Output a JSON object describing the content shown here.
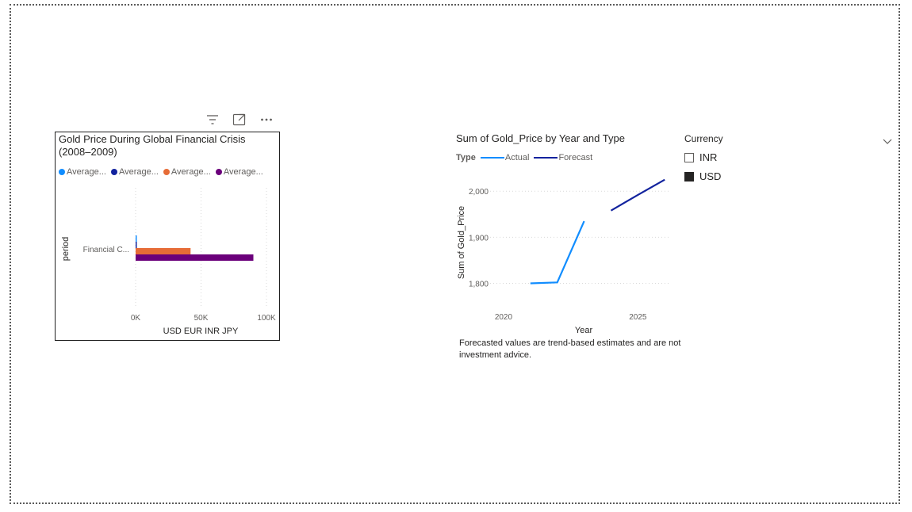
{
  "visual1": {
    "title": "Gold Price During Global Financial Crisis (2008–2009)",
    "legend": [
      {
        "label": "Average...",
        "color": "#118DFF"
      },
      {
        "label": "Average...",
        "color": "#12239E"
      },
      {
        "label": "Average...",
        "color": "#E66C37"
      },
      {
        "label": "Average...",
        "color": "#6B007B"
      }
    ],
    "header_icons": [
      "filter-icon",
      "focus-mode-icon",
      "more-options-icon"
    ]
  },
  "visual2": {
    "title": "Sum of Gold_Price by Year and Type",
    "legend_title": "Type",
    "legend": [
      {
        "label": "Actual",
        "color": "#118DFF"
      },
      {
        "label": "Forecast",
        "color": "#12239E"
      }
    ]
  },
  "note": "Forecasted values are trend-based estimates and are not investment advice.",
  "slicer": {
    "title": "Currency",
    "items": [
      {
        "label": "INR",
        "checked": false
      },
      {
        "label": "USD",
        "checked": true
      }
    ]
  },
  "chart_data": [
    {
      "type": "bar",
      "orientation": "horizontal",
      "title": "Gold Price During Global Financial Crisis (2008–2009)",
      "categories": [
        "Financial C..."
      ],
      "ylabel": "period",
      "xlabel": "USD EUR INR JPY",
      "xlim": [
        0,
        100000
      ],
      "xticks": [
        "0K",
        "50K",
        "100K"
      ],
      "series": [
        {
          "name": "Average...",
          "color": "#118DFF",
          "values": [
            850
          ]
        },
        {
          "name": "Average...",
          "color": "#12239E",
          "values": [
            600
          ]
        },
        {
          "name": "Average...",
          "color": "#E66C37",
          "values": [
            42000
          ]
        },
        {
          "name": "Average...",
          "color": "#6B007B",
          "values": [
            90000
          ]
        }
      ],
      "grid": true,
      "legend": "top"
    },
    {
      "type": "line",
      "title": "Sum of Gold_Price by Year and Type",
      "xlabel": "Year",
      "ylabel": "Sum of Gold_Price",
      "xlim": [
        2019.5,
        2026.2
      ],
      "ylim": [
        1775,
        2040
      ],
      "xticks": [
        2020,
        2025
      ],
      "yticks": [
        1800,
        1900,
        2000
      ],
      "ytick_labels": [
        "1,800",
        "1,900",
        "2,000"
      ],
      "series": [
        {
          "name": "Actual",
          "color": "#118DFF",
          "x": [
            2021,
            2022,
            2023
          ],
          "y": [
            1800,
            1802,
            1935
          ]
        },
        {
          "name": "Forecast",
          "color": "#12239E",
          "x": [
            2024,
            2025,
            2026
          ],
          "y": [
            1958,
            1992,
            2025
          ]
        }
      ],
      "grid": true,
      "legend": "top-left"
    }
  ]
}
